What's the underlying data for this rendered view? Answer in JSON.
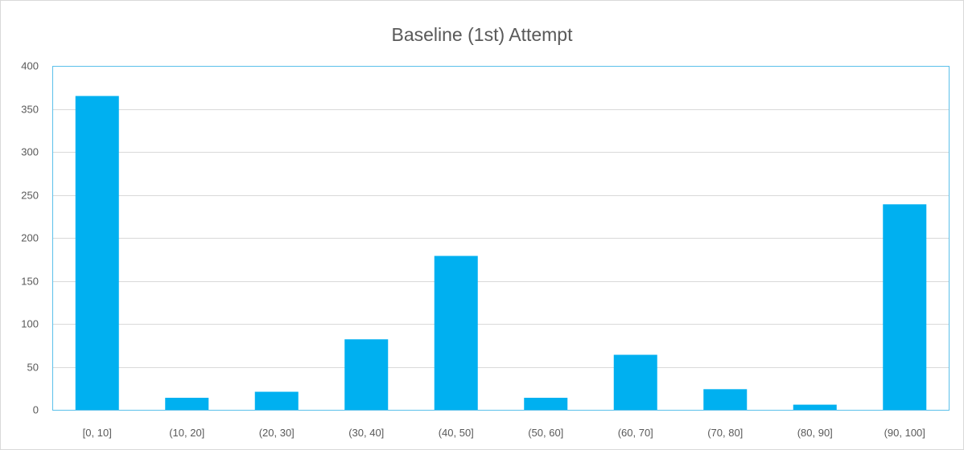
{
  "chart_data": {
    "type": "bar",
    "title": "Baseline (1st) Attempt",
    "xlabel": "",
    "ylabel": "",
    "categories": [
      "[0, 10]",
      "(10, 20]",
      "(20, 30]",
      "(30, 40]",
      "(40, 50]",
      "(50, 60]",
      "(60, 70]",
      "(70, 80]",
      "(80, 90]",
      "(90, 100]"
    ],
    "values": [
      365,
      14,
      21,
      82,
      179,
      14,
      64,
      24,
      6,
      239
    ],
    "ylim": [
      0,
      400
    ],
    "yticks": [
      0,
      50,
      100,
      150,
      200,
      250,
      300,
      350,
      400
    ],
    "grid": true,
    "legend": "none",
    "bar_color": "#00b0f0"
  }
}
